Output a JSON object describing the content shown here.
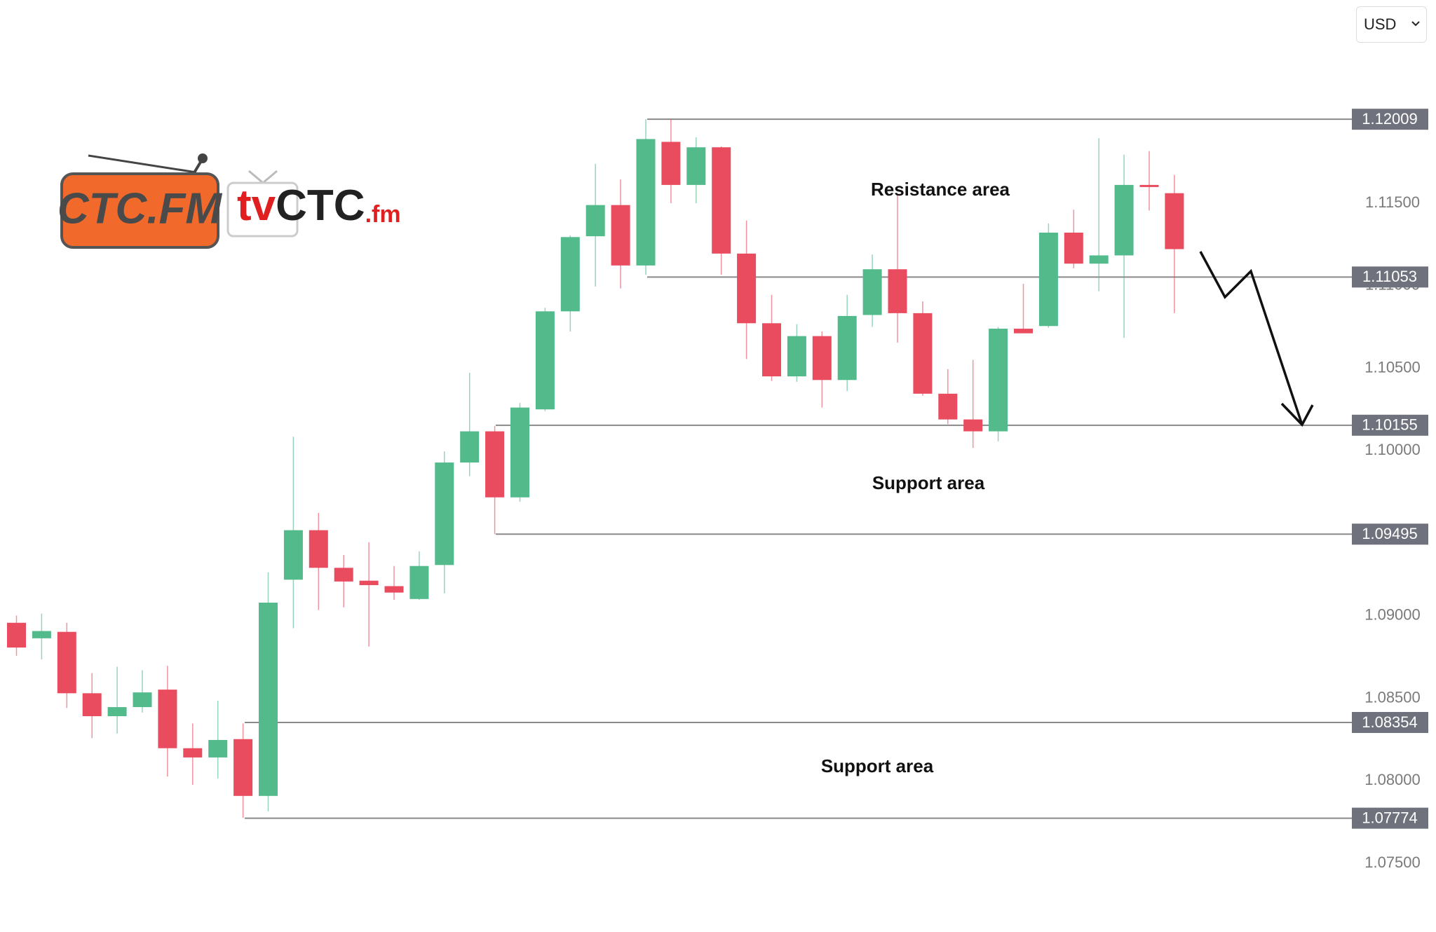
{
  "currency_selector": {
    "label": "USD"
  },
  "logos": {
    "ctc_fm": "CTC.FM",
    "tvctc": [
      "tv",
      "CTC",
      ".fm"
    ]
  },
  "chart_data": {
    "type": "candlestick",
    "up_color": "#52ba8b",
    "down_color": "#e94b5f",
    "open": [
      1.08958,
      1.08864,
      1.08903,
      1.08531,
      1.08392,
      1.08447,
      1.08553,
      1.08198,
      1.08142,
      1.08253,
      1.07909,
      1.09219,
      1.09519,
      1.09291,
      1.09213,
      1.0918,
      1.09102,
      1.09308,
      1.09929,
      1.10118,
      1.09718,
      1.10251,
      1.10845,
      1.113,
      1.11489,
      1.11123,
      1.11872,
      1.11611,
      1.11839,
      1.11195,
      1.10773,
      1.10451,
      1.10695,
      1.10429,
      1.10823,
      1.111,
      1.10834,
      1.10346,
      1.1019,
      1.10118,
      1.1074,
      1.10756,
      1.11322,
      1.11134,
      1.11184,
      1.11611,
      1.11561
    ],
    "high": [
      1.09002,
      1.09014,
      1.08958,
      1.08653,
      1.08692,
      1.0867,
      1.08697,
      1.08348,
      1.08486,
      1.08348,
      1.09263,
      1.10085,
      1.09624,
      1.09369,
      1.09446,
      1.09302,
      1.09391,
      1.09996,
      1.10473,
      1.10151,
      1.1029,
      1.10867,
      1.11306,
      1.11739,
      1.11644,
      1.12009,
      1.12009,
      1.119,
      1.11844,
      1.11395,
      1.10945,
      1.10767,
      1.10723,
      1.10945,
      1.11189,
      1.11556,
      1.10906,
      1.10495,
      1.10551,
      1.10751,
      1.11012,
      1.11378,
      1.11461,
      1.11894,
      1.11794,
      1.11816,
      1.11672
    ],
    "low": [
      1.08758,
      1.08736,
      1.08442,
      1.08259,
      1.08287,
      1.08414,
      1.08026,
      1.07976,
      1.08015,
      1.07776,
      1.07815,
      1.08925,
      1.09036,
      1.09052,
      1.08814,
      1.09097,
      1.09097,
      1.09136,
      1.09846,
      1.09495,
      1.09691,
      1.1024,
      1.10723,
      1.10995,
      1.10984,
      1.11067,
      1.115,
      1.115,
      1.11067,
      1.10556,
      1.10423,
      1.10418,
      1.10262,
      1.10362,
      1.10751,
      1.10656,
      1.10334,
      1.10162,
      1.10018,
      1.10057,
      1.10712,
      1.10745,
      1.11106,
      1.10967,
      1.10684,
      1.11456,
      1.10834
    ],
    "close": [
      1.08808,
      1.08908,
      1.08531,
      1.08392,
      1.08447,
      1.08536,
      1.08198,
      1.08142,
      1.08248,
      1.07909,
      1.0908,
      1.09519,
      1.09291,
      1.09208,
      1.09186,
      1.09141,
      1.09302,
      1.09929,
      1.10118,
      1.09718,
      1.10262,
      1.10845,
      1.11295,
      1.11489,
      1.11123,
      1.11889,
      1.11611,
      1.11839,
      1.11195,
      1.10773,
      1.10451,
      1.10695,
      1.10429,
      1.10817,
      1.111,
      1.10834,
      1.10346,
      1.1019,
      1.10118,
      1.1074,
      1.10712,
      1.11322,
      1.11134,
      1.11184,
      1.11611,
      1.116,
      1.11222
    ],
    "ylim": [
      1.0725,
      1.1225
    ],
    "yticks": [
      {
        "value": 1.075,
        "label": "1.07500"
      },
      {
        "value": 1.08,
        "label": "1.08000"
      },
      {
        "value": 1.085,
        "label": "1.08500"
      },
      {
        "value": 1.09,
        "label": "1.09000"
      },
      {
        "value": 1.1,
        "label": "1.10000"
      },
      {
        "value": 1.105,
        "label": "1.10500"
      },
      {
        "value": 1.11,
        "label": "1.11000"
      },
      {
        "value": 1.115,
        "label": "1.11500"
      }
    ],
    "levels": [
      1.12009,
      1.11053,
      1.10155,
      1.09495,
      1.08354,
      1.07774
    ],
    "annotations": [
      "Resistance area",
      "Support area",
      "Support area"
    ]
  }
}
